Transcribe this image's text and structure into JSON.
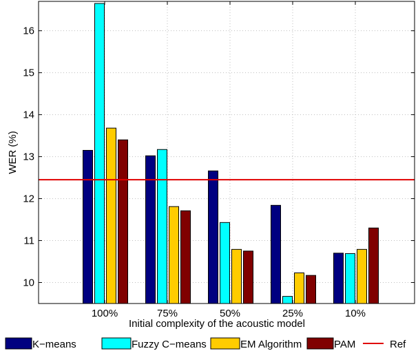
{
  "chart_data": {
    "type": "bar",
    "title": "",
    "xlabel": "Initial complexity of the acoustic model",
    "ylabel": "WER (%)",
    "categories": [
      "100%",
      "75%",
      "50%",
      "25%",
      "10%"
    ],
    "ylim": [
      9.5,
      16.7
    ],
    "yticks": [
      10,
      11,
      12,
      13,
      14,
      15,
      16
    ],
    "grid": true,
    "legend_position": "bottom",
    "series": [
      {
        "name": "K−means",
        "color": "#000080",
        "values": [
          13.15,
          13.02,
          12.66,
          11.84,
          10.7
        ]
      },
      {
        "name": "Fuzzy C−means",
        "color": "#00ffff",
        "values": [
          16.65,
          13.17,
          11.43,
          9.67,
          10.69
        ]
      },
      {
        "name": "EM Algorithm",
        "color": "#ffcc00",
        "values": [
          13.68,
          11.81,
          10.79,
          10.23,
          10.79
        ]
      },
      {
        "name": "PAM",
        "color": "#800000",
        "values": [
          13.4,
          11.71,
          10.75,
          10.17,
          11.3
        ]
      }
    ],
    "reference": {
      "name": "Ref",
      "value": 12.45,
      "color": "#e00000"
    }
  }
}
